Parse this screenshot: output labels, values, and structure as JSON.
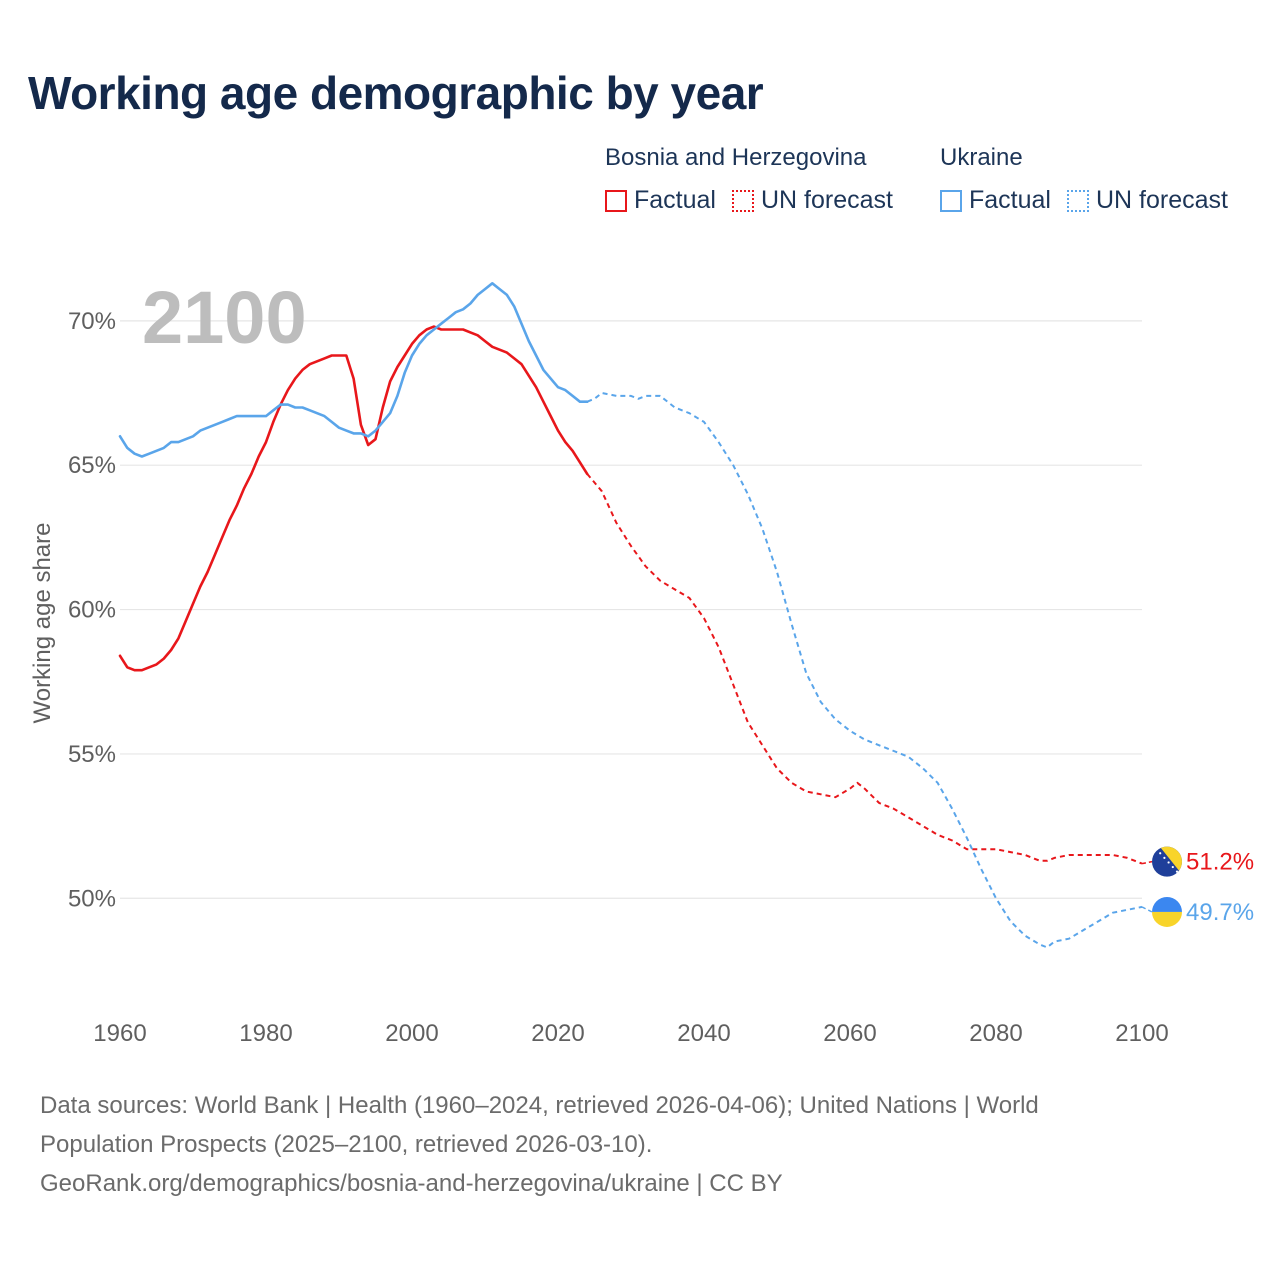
{
  "title": "Working age demographic by year",
  "legend": {
    "groups": [
      {
        "name": "Bosnia and Herzegovina",
        "factual_label": "Factual",
        "forecast_label": "UN forecast",
        "color": "#e8171b"
      },
      {
        "name": "Ukraine",
        "factual_label": "Factual",
        "forecast_label": "UN forecast",
        "color": "#5aa5ea"
      }
    ]
  },
  "year_overlay": "2100",
  "footer": {
    "line1": "Data sources: World Bank | Health (1960–2024, retrieved 2026-04-06); United Nations | World",
    "line2": "Population Prospects (2025–2100, retrieved 2026-03-10).",
    "line3": "GeoRank.org/demographics/bosnia-and-herzegovina/ukraine | CC BY"
  },
  "chart_data": {
    "type": "line",
    "title": "Working age demographic by year",
    "xlabel": "",
    "ylabel": "Working age share",
    "xlim": [
      1960,
      2100
    ],
    "ylim": [
      46.2,
      72.8
    ],
    "x_ticks": [
      1960,
      1980,
      2000,
      2020,
      2040,
      2060,
      2080,
      2100
    ],
    "y_ticks": [
      50,
      55,
      60,
      65,
      70
    ],
    "y_tick_labels": [
      "50%",
      "55%",
      "60%",
      "65%",
      "70%"
    ],
    "x_tick_labels": [
      "1960",
      "1980",
      "2000",
      "2020",
      "2040",
      "2060",
      "2080",
      "2100"
    ],
    "grid": true,
    "series": [
      {
        "name": "Bosnia and Herzegovina",
        "color": "#e8171b",
        "flag_icon": "bosnia-flag-icon",
        "end_label": "51.2%",
        "factual": {
          "x": [
            1960,
            1961,
            1962,
            1963,
            1964,
            1965,
            1966,
            1967,
            1968,
            1969,
            1970,
            1971,
            1972,
            1973,
            1974,
            1975,
            1976,
            1977,
            1978,
            1979,
            1980,
            1981,
            1982,
            1983,
            1984,
            1985,
            1986,
            1987,
            1988,
            1989,
            1990,
            1991,
            1992,
            1993,
            1994,
            1995,
            1996,
            1997,
            1998,
            1999,
            2000,
            2001,
            2002,
            2003,
            2004,
            2005,
            2006,
            2007,
            2008,
            2009,
            2010,
            2011,
            2012,
            2013,
            2014,
            2015,
            2016,
            2017,
            2018,
            2019,
            2020,
            2021,
            2022,
            2023,
            2024
          ],
          "y": [
            58.4,
            58.0,
            57.9,
            57.9,
            58.0,
            58.1,
            58.3,
            58.6,
            59.0,
            59.6,
            60.2,
            60.8,
            61.3,
            61.9,
            62.5,
            63.1,
            63.6,
            64.2,
            64.7,
            65.3,
            65.8,
            66.5,
            67.1,
            67.6,
            68.0,
            68.3,
            68.5,
            68.6,
            68.7,
            68.8,
            68.8,
            68.8,
            68.0,
            66.4,
            65.7,
            65.9,
            67.0,
            67.9,
            68.4,
            68.8,
            69.2,
            69.5,
            69.7,
            69.8,
            69.7,
            69.7,
            69.7,
            69.7,
            69.6,
            69.5,
            69.3,
            69.1,
            69.0,
            68.9,
            68.7,
            68.5,
            68.1,
            67.7,
            67.2,
            66.7,
            66.2,
            65.8,
            65.5,
            65.1,
            64.7
          ]
        },
        "forecast": {
          "x": [
            2024,
            2026,
            2028,
            2030,
            2032,
            2034,
            2036,
            2038,
            2040,
            2042,
            2044,
            2046,
            2048,
            2050,
            2052,
            2054,
            2056,
            2058,
            2060,
            2061,
            2062,
            2064,
            2066,
            2068,
            2070,
            2072,
            2074,
            2076,
            2078,
            2080,
            2082,
            2084,
            2086,
            2087,
            2088,
            2090,
            2092,
            2094,
            2096,
            2098,
            2100
          ],
          "y": [
            64.7,
            64.1,
            63.0,
            62.2,
            61.5,
            61.0,
            60.7,
            60.4,
            59.7,
            58.7,
            57.4,
            56.1,
            55.3,
            54.5,
            54.0,
            53.7,
            53.6,
            53.5,
            53.8,
            54.0,
            53.8,
            53.3,
            53.1,
            52.8,
            52.5,
            52.2,
            52.0,
            51.7,
            51.7,
            51.7,
            51.6,
            51.5,
            51.3,
            51.3,
            51.4,
            51.5,
            51.5,
            51.5,
            51.5,
            51.4,
            51.2
          ]
        }
      },
      {
        "name": "Ukraine",
        "color": "#5aa5ea",
        "flag_icon": "ukraine-flag-icon",
        "end_label": "49.7%",
        "factual": {
          "x": [
            1960,
            1961,
            1962,
            1963,
            1964,
            1965,
            1966,
            1967,
            1968,
            1969,
            1970,
            1971,
            1972,
            1973,
            1974,
            1975,
            1976,
            1977,
            1978,
            1979,
            1980,
            1981,
            1982,
            1983,
            1984,
            1985,
            1986,
            1987,
            1988,
            1989,
            1990,
            1991,
            1992,
            1993,
            1994,
            1995,
            1996,
            1997,
            1998,
            1999,
            2000,
            2001,
            2002,
            2003,
            2004,
            2005,
            2006,
            2007,
            2008,
            2009,
            2010,
            2011,
            2012,
            2013,
            2014,
            2015,
            2016,
            2017,
            2018,
            2019,
            2020,
            2021,
            2022,
            2023,
            2024
          ],
          "y": [
            66.0,
            65.6,
            65.4,
            65.3,
            65.4,
            65.5,
            65.6,
            65.8,
            65.8,
            65.9,
            66.0,
            66.2,
            66.3,
            66.4,
            66.5,
            66.6,
            66.7,
            66.7,
            66.7,
            66.7,
            66.7,
            66.9,
            67.1,
            67.1,
            67.0,
            67.0,
            66.9,
            66.8,
            66.7,
            66.5,
            66.3,
            66.2,
            66.1,
            66.1,
            66.0,
            66.2,
            66.5,
            66.8,
            67.4,
            68.2,
            68.8,
            69.2,
            69.5,
            69.7,
            69.9,
            70.1,
            70.3,
            70.4,
            70.6,
            70.9,
            71.1,
            71.3,
            71.1,
            70.9,
            70.5,
            69.9,
            69.3,
            68.8,
            68.3,
            68.0,
            67.7,
            67.6,
            67.4,
            67.2,
            67.2
          ]
        },
        "forecast": {
          "x": [
            2024,
            2025,
            2026,
            2028,
            2030,
            2031,
            2032,
            2034,
            2036,
            2038,
            2040,
            2042,
            2044,
            2046,
            2048,
            2050,
            2052,
            2054,
            2056,
            2058,
            2060,
            2062,
            2064,
            2066,
            2068,
            2070,
            2072,
            2074,
            2076,
            2078,
            2080,
            2082,
            2084,
            2086,
            2087,
            2088,
            2090,
            2092,
            2094,
            2096,
            2098,
            2100
          ],
          "y": [
            67.2,
            67.3,
            67.5,
            67.4,
            67.4,
            67.3,
            67.4,
            67.4,
            67.0,
            66.8,
            66.5,
            65.8,
            65.0,
            64.0,
            62.8,
            61.3,
            59.5,
            57.8,
            56.8,
            56.2,
            55.8,
            55.5,
            55.3,
            55.1,
            54.9,
            54.5,
            54.0,
            53.1,
            52.1,
            51.0,
            50.0,
            49.2,
            48.7,
            48.4,
            48.3,
            48.5,
            48.6,
            48.9,
            49.2,
            49.5,
            49.6,
            49.7
          ]
        }
      }
    ]
  }
}
